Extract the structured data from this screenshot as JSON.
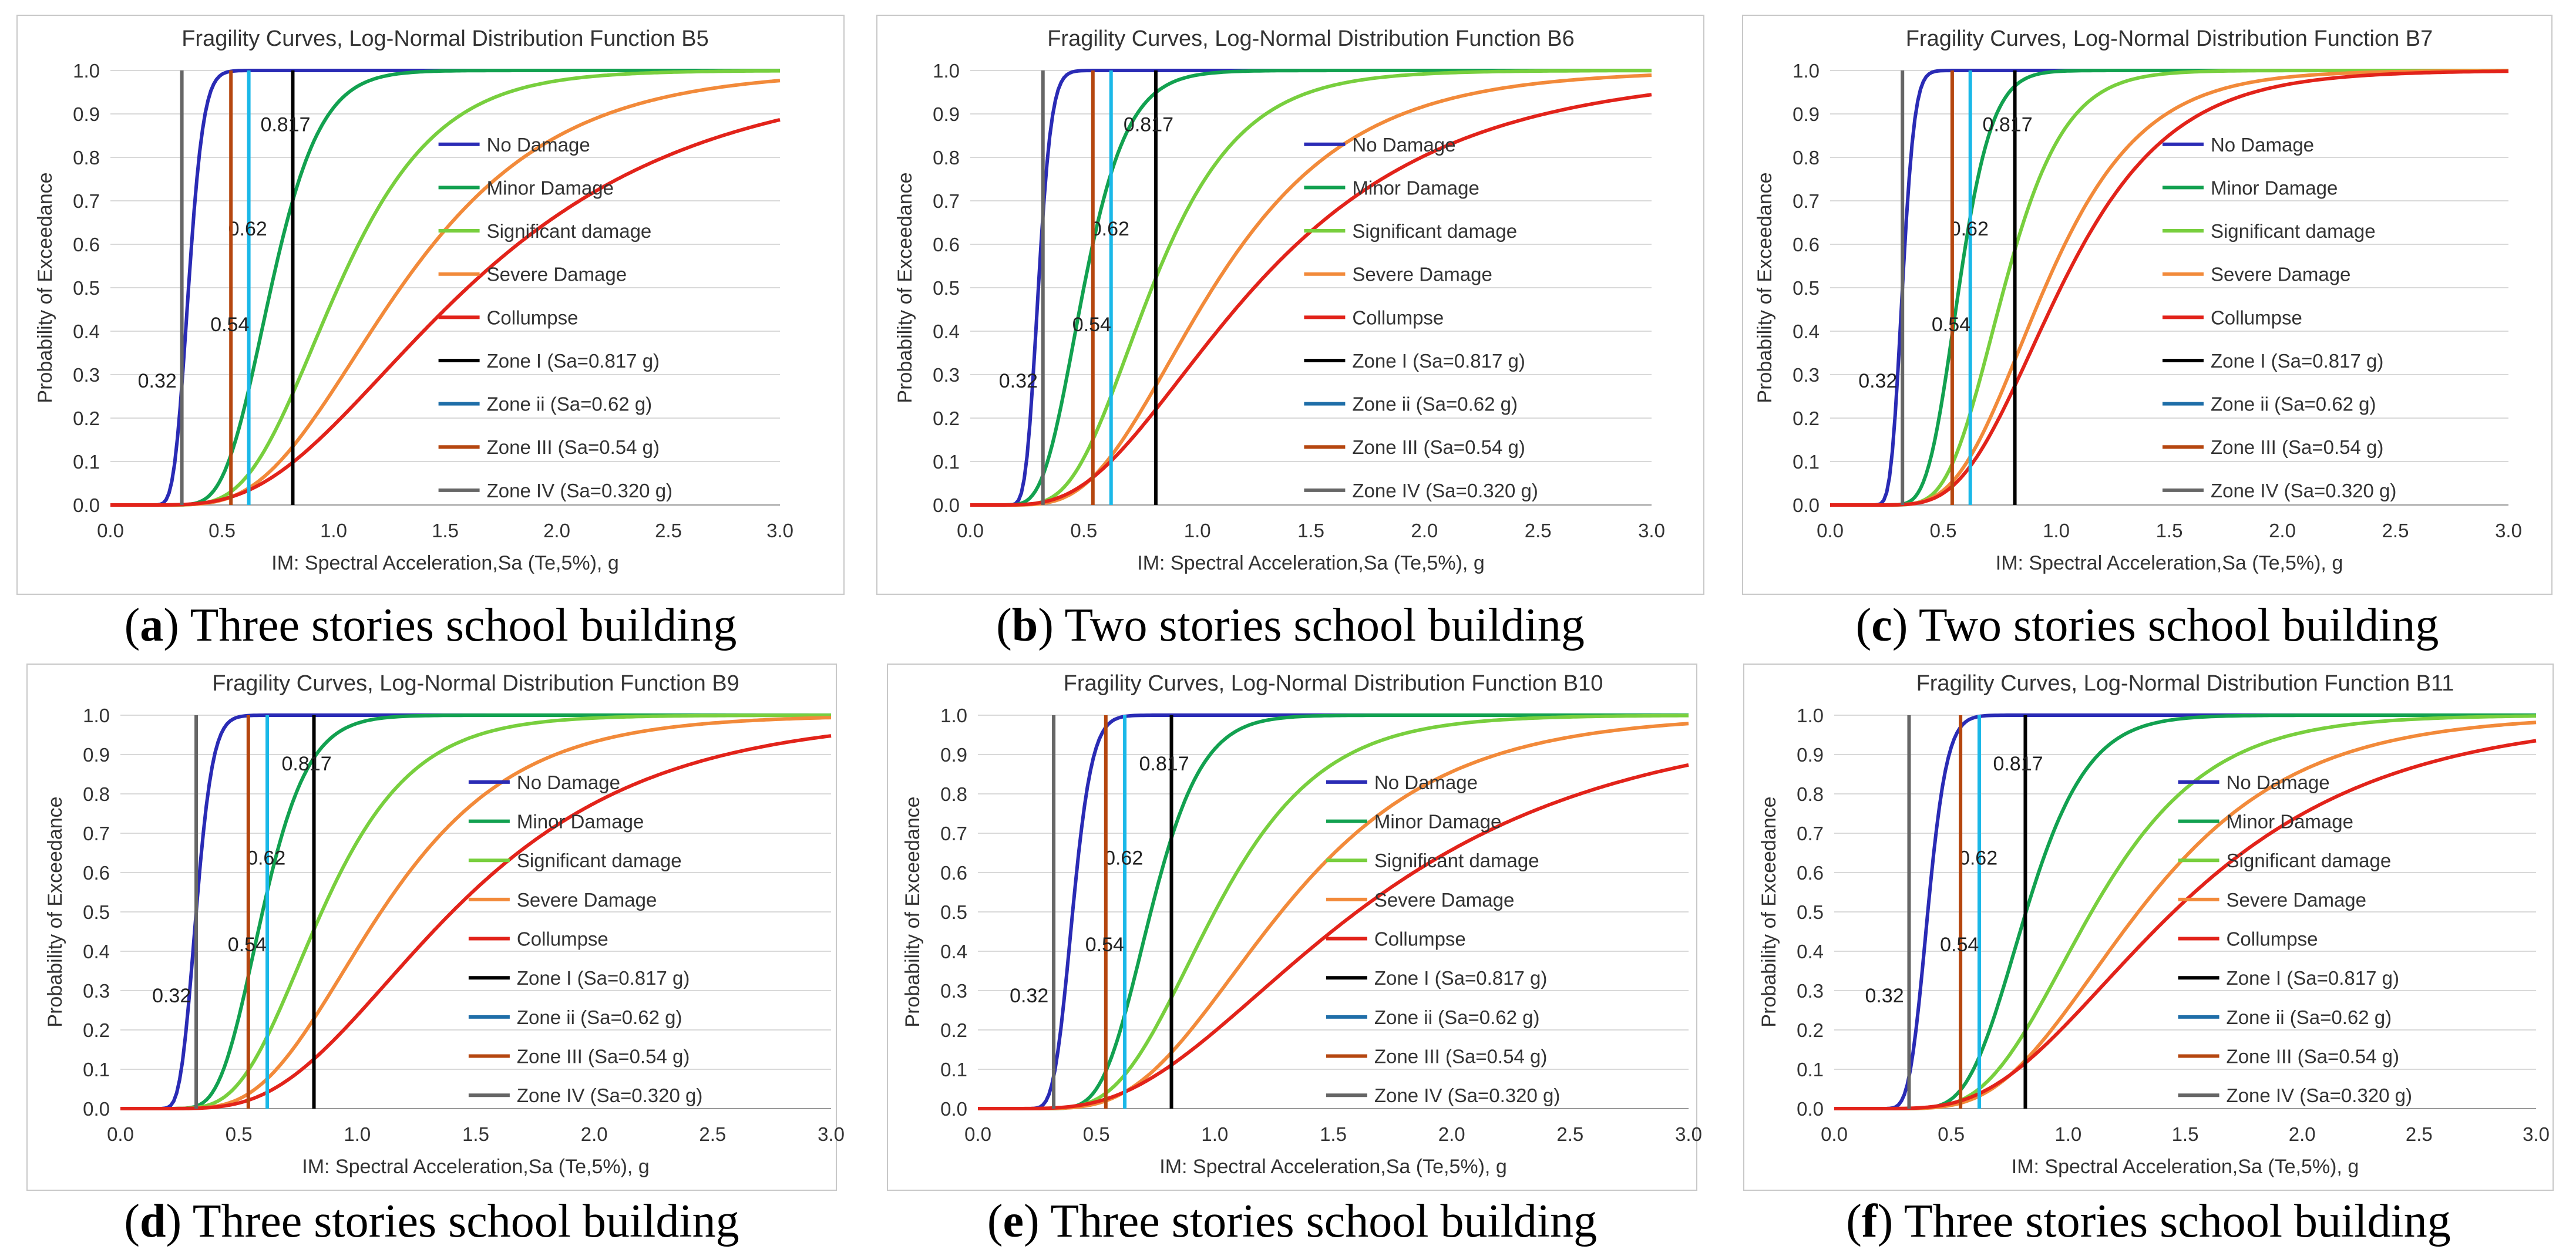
{
  "common": {
    "xlabel": "IM: Spectral Acceleration,Sa (Te,5%), g",
    "ylabel": "Probability of Exceedance",
    "xlim": [
      0,
      3.0
    ],
    "ylim": [
      0,
      1.0
    ],
    "x_ticks": [
      "0.0",
      "0.5",
      "1.0",
      "1.5",
      "2.0",
      "2.5",
      "3.0"
    ],
    "y_ticks": [
      "0.0",
      "0.1",
      "0.2",
      "0.3",
      "0.4",
      "0.5",
      "0.6",
      "0.7",
      "0.8",
      "0.9",
      "1.0"
    ],
    "series_styles": [
      {
        "name": "No Damage",
        "color": "#2a2bb5"
      },
      {
        "name": "Minor Damage",
        "color": "#12a150"
      },
      {
        "name": "Significant damage",
        "color": "#78cf3e"
      },
      {
        "name": "Severe Damage",
        "color": "#f28a3a"
      },
      {
        "name": "Collumpse",
        "color": "#e2231a"
      }
    ],
    "zone_lines": [
      {
        "name": "Zone I (Sa=0.817 g)",
        "x": 0.817,
        "color": "#000000",
        "label": "0.817"
      },
      {
        "name": "Zone ii (Sa=0.62 g)",
        "x": 0.62,
        "color": "#1ab8e8",
        "legend_color": "#1f6ea8",
        "label": "0.62"
      },
      {
        "name": "Zone III (Sa=0.54 g)",
        "x": 0.54,
        "color": "#b5460f",
        "label": "0.54"
      },
      {
        "name": "Zone IV (Sa=0.320 g)",
        "x": 0.32,
        "color": "#666666",
        "label": "0.32"
      }
    ]
  },
  "chart_data": [
    {
      "type": "line",
      "title": "Fragility Curves, Log-Normal Distribution Function B5",
      "caption_letter": "a",
      "caption_text": " Three stories school building",
      "series": [
        {
          "name": "No Damage",
          "median": 0.35,
          "beta": 0.15
        },
        {
          "name": "Minor Damage",
          "median": 0.72,
          "beta": 0.24
        },
        {
          "name": "Significant damage",
          "median": 1.02,
          "beta": 0.34
        },
        {
          "name": "Severe Damage",
          "median": 1.3,
          "beta": 0.42
        },
        {
          "name": "Collumpse",
          "median": 1.6,
          "beta": 0.52
        }
      ]
    },
    {
      "type": "line",
      "title": "Fragility Curves, Log-Normal Distribution Function B6",
      "caption_letter": "b",
      "caption_text": " Two stories school building",
      "series": [
        {
          "name": "No Damage",
          "median": 0.3,
          "beta": 0.15
        },
        {
          "name": "Minor Damage",
          "median": 0.5,
          "beta": 0.3
        },
        {
          "name": "Significant damage",
          "median": 0.8,
          "beta": 0.38
        },
        {
          "name": "Severe Damage",
          "median": 1.07,
          "beta": 0.45
        },
        {
          "name": "Collumpse",
          "median": 1.25,
          "beta": 0.55
        }
      ]
    },
    {
      "type": "line",
      "title": "Fragility Curves, Log-Normal Distribution Function B7",
      "caption_letter": "c",
      "caption_text": " Two stories school building",
      "series": [
        {
          "name": "No Damage",
          "median": 0.32,
          "beta": 0.13
        },
        {
          "name": "Minor Damage",
          "median": 0.57,
          "beta": 0.2
        },
        {
          "name": "Significant damage",
          "median": 0.77,
          "beta": 0.27
        },
        {
          "name": "Severe Damage",
          "median": 0.95,
          "beta": 0.35
        },
        {
          "name": "Collumpse",
          "median": 1.02,
          "beta": 0.37
        }
      ]
    },
    {
      "type": "line",
      "title": "Fragility Curves, Log-Normal Distribution Function B9",
      "caption_letter": "d",
      "caption_text": " Three stories school building",
      "series": [
        {
          "name": "No Damage",
          "median": 0.32,
          "beta": 0.17
        },
        {
          "name": "Minor Damage",
          "median": 0.6,
          "beta": 0.25
        },
        {
          "name": "Significant damage",
          "median": 0.85,
          "beta": 0.35
        },
        {
          "name": "Severe Damage",
          "median": 1.1,
          "beta": 0.4
        },
        {
          "name": "Collumpse",
          "median": 1.4,
          "beta": 0.47
        }
      ]
    },
    {
      "type": "line",
      "title": "Fragility Curves, Log-Normal Distribution Function B10",
      "caption_letter": "e",
      "caption_text": " Three stories school building",
      "series": [
        {
          "name": "No Damage",
          "median": 0.4,
          "beta": 0.16
        },
        {
          "name": "Minor Damage",
          "median": 0.73,
          "beta": 0.23
        },
        {
          "name": "Significant damage",
          "median": 1.0,
          "beta": 0.35
        },
        {
          "name": "Severe Damage",
          "median": 1.28,
          "beta": 0.42
        },
        {
          "name": "Collumpse",
          "median": 1.6,
          "beta": 0.55
        }
      ]
    },
    {
      "type": "line",
      "title": "Fragility Curves, Log-Normal Distribution Function B11",
      "caption_letter": "f",
      "caption_text": " Three stories school building",
      "series": [
        {
          "name": "No Damage",
          "median": 0.4,
          "beta": 0.16
        },
        {
          "name": "Minor Damage",
          "median": 0.82,
          "beta": 0.25
        },
        {
          "name": "Significant damage",
          "median": 1.1,
          "beta": 0.35
        },
        {
          "name": "Severe Damage",
          "median": 1.3,
          "beta": 0.4
        },
        {
          "name": "Collumpse",
          "median": 1.45,
          "beta": 0.48
        }
      ]
    }
  ]
}
